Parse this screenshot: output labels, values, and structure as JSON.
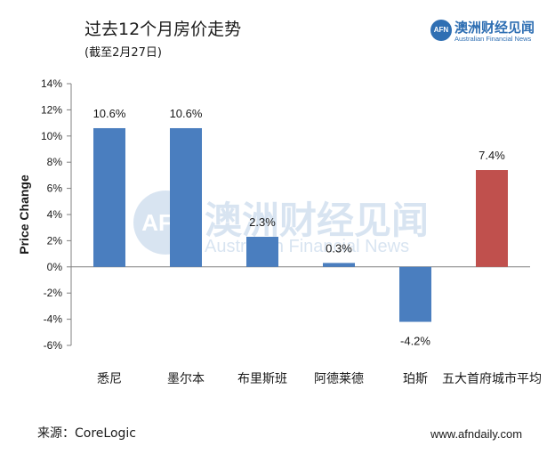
{
  "title": "过去12个月房价走势",
  "subtitle": "(截至2月27日)",
  "logo": {
    "mark": "AFN",
    "name": "澳洲财经见闻",
    "tagline": "Australian Financial News"
  },
  "watermark": {
    "mark": "AFN",
    "name": "澳洲财经见闻",
    "tagline": "Australian Financial News"
  },
  "source": "来源：CoreLogic",
  "website": "www.afndaily.com",
  "colors": {
    "bar": "#4a7ebf",
    "highlight": "#c0504d",
    "axis": "#808080"
  },
  "chart_data": {
    "type": "bar",
    "ylabel": "Price Change",
    "ylim": [
      -6,
      14
    ],
    "yticks": [
      14,
      12,
      10,
      8,
      6,
      4,
      2,
      0,
      -2,
      -4,
      -6
    ],
    "ytick_labels": [
      "14%",
      "12%",
      "10%",
      "8%",
      "6%",
      "4%",
      "2%",
      "0%",
      "-2%",
      "-4%",
      "-6%"
    ],
    "categories": [
      "悉尼",
      "墨尔本",
      "布里斯班",
      "阿德莱德",
      "珀斯",
      "五大首府城市平均"
    ],
    "values": [
      10.6,
      10.6,
      2.3,
      0.3,
      -4.2,
      7.4
    ],
    "data_labels": [
      "10.6%",
      "10.6%",
      "2.3%",
      "0.3%",
      "-4.2%",
      "7.4%"
    ],
    "highlight_index": 5,
    "grid": false
  }
}
